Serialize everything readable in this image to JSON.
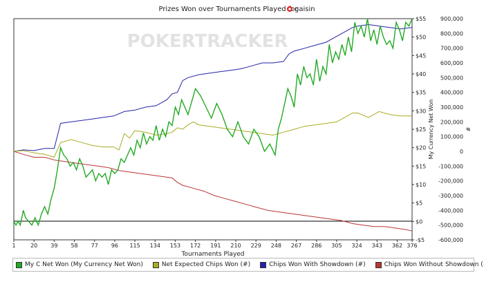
{
  "chart_data": {
    "type": "line",
    "title": "Prizes Won over Tournaments Played for",
    "player": "gaisin",
    "watermark": "POKERTRACKER",
    "xlabel": "Tournaments Played",
    "ylabel_left": "",
    "ylabel_right_currency": "My Currency Net Won",
    "ylabel_right_chips": "#",
    "xlim": [
      1,
      376
    ],
    "x_ticks": [
      1,
      20,
      39,
      58,
      77,
      96,
      115,
      134,
      153,
      172,
      191,
      210,
      229,
      248,
      267,
      286,
      305,
      324,
      343,
      362,
      376
    ],
    "y_currency_ticks": [
      "-$5",
      "$0",
      "$5",
      "$10",
      "$15",
      "$20",
      "$25",
      "$30",
      "$35",
      "$40",
      "$45",
      "$50",
      "$55"
    ],
    "y_currency_range": [
      -5,
      55
    ],
    "y_chips_ticks": [
      "-600,000",
      "-500,000",
      "-400,000",
      "-300,000",
      "-200,000",
      "-100,000",
      "0",
      "100,000",
      "200,000",
      "300,000",
      "400,000",
      "500,000",
      "600,000",
      "700,000",
      "800,000",
      "900,000"
    ],
    "y_chips_range": [
      -600000,
      900000
    ],
    "grid": false,
    "legend_position": "bottom",
    "series": [
      {
        "name": "My C Net Won (My Currency Net Won)",
        "axis": "currency",
        "color": "#22aa22",
        "x": [
          1,
          3,
          5,
          7,
          10,
          12,
          15,
          18,
          21,
          24,
          27,
          30,
          33,
          36,
          39,
          42,
          45,
          48,
          51,
          54,
          57,
          60,
          63,
          66,
          69,
          72,
          75,
          78,
          81,
          84,
          87,
          90,
          93,
          96,
          99,
          102,
          105,
          108,
          111,
          114,
          117,
          120,
          123,
          126,
          129,
          132,
          135,
          138,
          141,
          144,
          147,
          150,
          153,
          156,
          159,
          162,
          165,
          168,
          172,
          177,
          182,
          187,
          192,
          197,
          202,
          207,
          212,
          217,
          222,
          227,
          232,
          237,
          242,
          247,
          250,
          253,
          256,
          259,
          262,
          265,
          268,
          271,
          274,
          277,
          280,
          283,
          286,
          289,
          292,
          295,
          298,
          301,
          304,
          307,
          310,
          313,
          316,
          319,
          322,
          325,
          328,
          331,
          334,
          337,
          340,
          343,
          346,
          349,
          352,
          355,
          358,
          361,
          364,
          367,
          370,
          373,
          376
        ],
        "y": [
          0,
          -1,
          0,
          -1,
          3,
          1,
          0,
          -1,
          1,
          -1,
          2,
          4,
          2,
          6,
          9,
          14,
          20,
          18,
          17,
          15,
          16,
          14,
          17,
          15,
          12,
          13,
          14,
          11,
          13,
          12,
          13,
          10,
          14,
          13,
          14,
          17,
          16,
          18,
          20,
          18,
          22,
          20,
          24,
          21,
          23,
          22,
          26,
          22,
          25,
          23,
          27,
          26,
          31,
          29,
          33,
          31,
          29,
          32,
          36,
          34,
          31,
          28,
          32,
          29,
          25,
          23,
          27,
          23,
          21,
          25,
          23,
          19,
          21,
          18,
          25,
          28,
          32,
          36,
          34,
          31,
          40,
          37,
          42,
          39,
          40,
          37,
          44,
          38,
          42,
          40,
          48,
          43,
          46,
          44,
          48,
          45,
          50,
          46,
          54,
          51,
          53,
          50,
          55,
          49,
          52,
          48,
          53,
          50,
          48,
          49,
          47,
          54,
          52,
          49,
          54,
          53,
          55
        ]
      },
      {
        "name": "Net Expected Chips Won (#)",
        "axis": "chips",
        "color": "#aaaa22",
        "x": [
          1,
          10,
          20,
          30,
          39,
          45,
          55,
          65,
          75,
          85,
          95,
          100,
          105,
          110,
          115,
          125,
          135,
          145,
          150,
          155,
          160,
          165,
          170,
          175,
          185,
          195,
          205,
          215,
          225,
          235,
          245,
          255,
          265,
          275,
          285,
          295,
          305,
          315,
          320,
          325,
          335,
          345,
          355,
          365,
          376
        ],
        "y": [
          0,
          5000,
          -10000,
          -20000,
          -40000,
          60000,
          80000,
          60000,
          40000,
          30000,
          30000,
          10000,
          120000,
          90000,
          140000,
          130000,
          110000,
          120000,
          130000,
          160000,
          150000,
          180000,
          200000,
          180000,
          170000,
          160000,
          150000,
          140000,
          130000,
          120000,
          110000,
          130000,
          150000,
          170000,
          180000,
          190000,
          200000,
          240000,
          260000,
          260000,
          230000,
          270000,
          250000,
          240000,
          240000
        ]
      },
      {
        "name": "Chips Won With Showdown (#)",
        "axis": "chips",
        "color": "#2222aa",
        "x": [
          1,
          10,
          20,
          30,
          39,
          45,
          55,
          65,
          75,
          85,
          95,
          105,
          115,
          125,
          135,
          145,
          150,
          155,
          160,
          165,
          175,
          185,
          195,
          205,
          215,
          225,
          235,
          245,
          255,
          260,
          265,
          275,
          285,
          295,
          305,
          315,
          320,
          325,
          335,
          345,
          355,
          365,
          376
        ],
        "y": [
          0,
          10000,
          5000,
          20000,
          20000,
          190000,
          200000,
          210000,
          220000,
          230000,
          240000,
          270000,
          280000,
          300000,
          310000,
          350000,
          390000,
          400000,
          480000,
          500000,
          520000,
          530000,
          540000,
          550000,
          560000,
          580000,
          600000,
          600000,
          610000,
          660000,
          680000,
          700000,
          720000,
          740000,
          780000,
          820000,
          840000,
          850000,
          860000,
          850000,
          840000,
          830000,
          840000
        ]
      },
      {
        "name": "Chips Won Without Showdown (#)",
        "axis": "chips",
        "color": "#bb3333",
        "x": [
          1,
          10,
          20,
          30,
          40,
          50,
          60,
          70,
          80,
          90,
          100,
          110,
          120,
          130,
          140,
          150,
          155,
          160,
          170,
          180,
          190,
          200,
          210,
          220,
          230,
          240,
          250,
          260,
          270,
          280,
          290,
          300,
          310,
          320,
          330,
          340,
          350,
          360,
          370,
          376
        ],
        "y": [
          0,
          -20000,
          -40000,
          -40000,
          -60000,
          -70000,
          -80000,
          -90000,
          -100000,
          -110000,
          -130000,
          -140000,
          -150000,
          -160000,
          -170000,
          -180000,
          -210000,
          -230000,
          -250000,
          -270000,
          -300000,
          -320000,
          -340000,
          -360000,
          -380000,
          -400000,
          -410000,
          -420000,
          -430000,
          -440000,
          -450000,
          -460000,
          -470000,
          -490000,
          -500000,
          -510000,
          -510000,
          -520000,
          -530000,
          -540000
        ]
      }
    ]
  }
}
